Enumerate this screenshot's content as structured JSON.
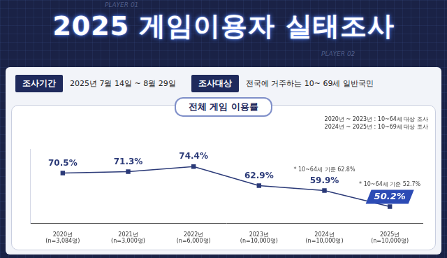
{
  "header": {
    "title": "2025 게임이용자 실태조사",
    "decorations": [
      "PLAYER 01",
      "PLAYER 02"
    ]
  },
  "info": [
    {
      "label": "조사기간",
      "text": "2025년 7월 14일 ~ 8월 29일"
    },
    {
      "label": "조사대상",
      "text": "전국에 거주하는 10~ 69세 일반국민"
    }
  ],
  "chart_data": {
    "type": "line",
    "title": "전체 게임 이용률",
    "notes": [
      "2020년 ~ 2023년 : 10~64세 대상 조사",
      "2024년 ~ 2025년 : 10~69세 대상 조사"
    ],
    "categories": [
      "2020년\n(n=3,084명)",
      "2021년\n(n=3,000명)",
      "2022년\n(n=6,000명)",
      "2023년\n(n=10,000명)",
      "2024년\n(n=10,000명)",
      "2025년\n(n=10,000명)"
    ],
    "values": [
      70.5,
      71.3,
      74.4,
      62.9,
      59.9,
      50.2
    ],
    "value_labels": [
      "70.5%",
      "71.3%",
      "74.4%",
      "62.9%",
      "59.9%",
      "50.2%"
    ],
    "annotations": [
      {
        "category": "2024년\n(n=10,000명)",
        "text": "* 10~64세 기준 62.8%"
      },
      {
        "category": "2025년\n(n=10,000명)",
        "text": "* 10~64세 기준 52.7%"
      }
    ],
    "color": "#2b3a78",
    "marker": "square",
    "line_style": "solid",
    "data_labels": true,
    "tick_labels": "x",
    "grid": false,
    "ylim": [
      40,
      85
    ]
  }
}
